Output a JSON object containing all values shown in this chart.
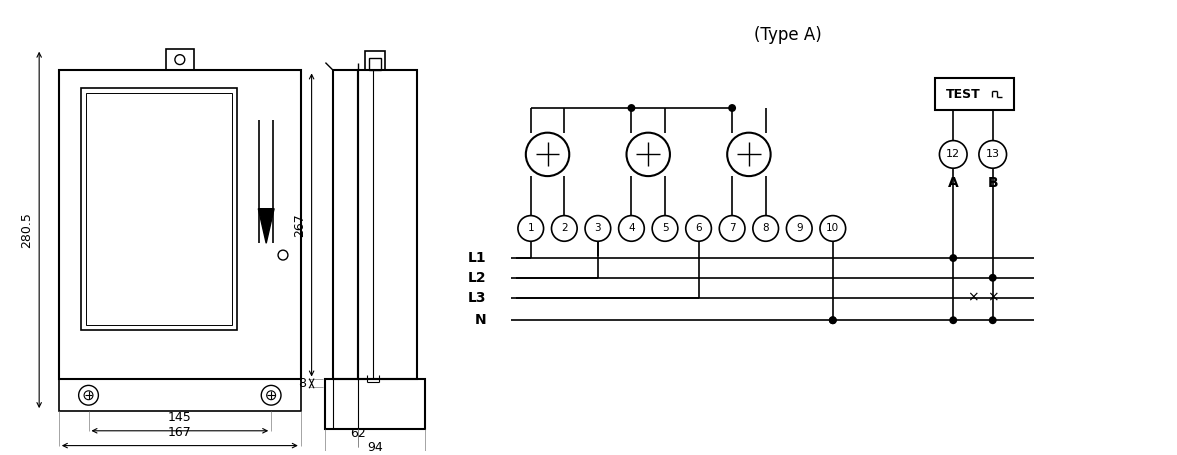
{
  "bg_color": "#ffffff",
  "line_color": "#000000",
  "fig_width": 11.77,
  "fig_height": 4.55,
  "dims": {
    "front_280_5": "280.5",
    "front_145": "145",
    "front_167": "167",
    "side_267": "267",
    "side_8": "8",
    "side_62": "62",
    "side_94": "94"
  },
  "wiring_title": "(Type A)",
  "terminals": [
    "1",
    "2",
    "3",
    "4",
    "5",
    "6",
    "7",
    "8",
    "9",
    "10"
  ],
  "test_terminals": [
    "12",
    "13"
  ],
  "line_labels": [
    "L1",
    "L2",
    "L3",
    "N"
  ],
  "ab_labels": [
    "A",
    "B"
  ]
}
